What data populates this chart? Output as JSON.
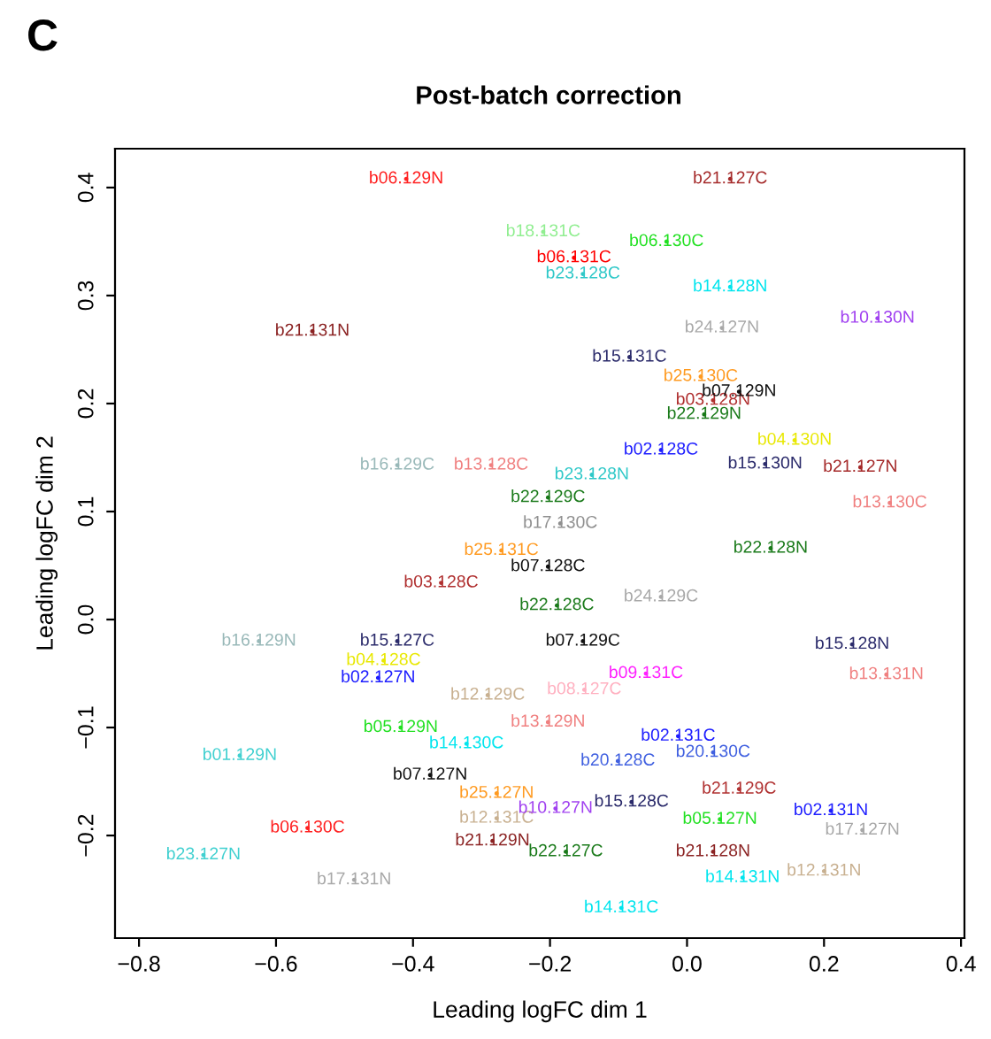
{
  "chart_data": {
    "type": "scatter",
    "title": "Post-batch correction",
    "xlabel": "Leading logFC dim 1",
    "ylabel": "Leading logFC dim 2",
    "annotations": [
      "C"
    ],
    "marker": "circle",
    "grid": false,
    "xlim": [
      -0.835,
      0.405
    ],
    "ylim": [
      -0.295,
      0.436
    ],
    "xticks": [
      {
        "value": -0.8,
        "label": "−0.8"
      },
      {
        "value": -0.6,
        "label": "−0.6"
      },
      {
        "value": -0.4,
        "label": "−0.4"
      },
      {
        "value": -0.2,
        "label": "−0.2"
      },
      {
        "value": 0.0,
        "label": "0.0"
      },
      {
        "value": 0.2,
        "label": "0.2"
      },
      {
        "value": 0.4,
        "label": "0.4"
      }
    ],
    "yticks": [
      {
        "value": -0.2,
        "label": "−0.2"
      },
      {
        "value": -0.1,
        "label": "−0.1"
      },
      {
        "value": 0.0,
        "label": "0.0"
      },
      {
        "value": 0.1,
        "label": "0.1"
      },
      {
        "value": 0.2,
        "label": "0.2"
      },
      {
        "value": 0.3,
        "label": "0.3"
      },
      {
        "value": 0.4,
        "label": "0.4"
      }
    ],
    "x": [
      -0.41,
      0.063,
      -0.21,
      -0.03,
      -0.165,
      -0.152,
      0.063,
      0.278,
      0.051,
      -0.547,
      -0.084,
      0.038,
      0.025,
      0.076,
      0.02,
      -0.038,
      0.157,
      0.114,
      0.253,
      0.296,
      -0.286,
      -0.423,
      -0.203,
      -0.185,
      -0.139,
      0.122,
      -0.203,
      -0.271,
      -0.359,
      -0.19,
      -0.152,
      0.241,
      -0.625,
      -0.423,
      -0.443,
      -0.451,
      -0.291,
      -0.203,
      -0.322,
      -0.418,
      -0.653,
      -0.375,
      -0.278,
      -0.278,
      -0.284,
      -0.554,
      -0.706,
      -0.486,
      -0.192,
      -0.177,
      -0.081,
      0.048,
      0.21,
      0.256,
      0.038,
      0.081,
      0.2,
      -0.096,
      0.076,
      -0.101,
      0.038,
      -0.013,
      -0.06,
      -0.15,
      0.291,
      -0.038
    ],
    "values": [
      0.408,
      0.408,
      0.359,
      0.35,
      0.335,
      0.32,
      0.308,
      0.279,
      0.27,
      0.267,
      0.243,
      0.203,
      0.19,
      0.211,
      0.225,
      0.157,
      0.166,
      0.144,
      0.141,
      0.108,
      0.143,
      0.143,
      0.113,
      0.089,
      0.134,
      0.066,
      0.049,
      0.064,
      0.034,
      0.013,
      -0.02,
      -0.023,
      -0.02,
      -0.02,
      -0.038,
      -0.054,
      -0.07,
      -0.095,
      -0.115,
      -0.1,
      -0.126,
      -0.144,
      -0.161,
      -0.184,
      -0.205,
      -0.193,
      -0.218,
      -0.241,
      -0.175,
      -0.215,
      -0.169,
      -0.185,
      -0.177,
      -0.195,
      -0.215,
      -0.239,
      -0.233,
      -0.267,
      -0.157,
      -0.131,
      -0.123,
      -0.108,
      -0.05,
      -0.065,
      -0.051,
      0.021
    ],
    "value_labels": [
      "b06.129N",
      "b21.127C",
      "b18.131C",
      "b06.130C",
      "b06.131C",
      "b23.128C",
      "b14.128N",
      "b10.130N",
      "b24.127N",
      "b21.131N",
      "b15.131C",
      "b03.128N",
      "b22.129N",
      "b07.129N",
      "b25.130C",
      "b02.128C",
      "b04.130N",
      "b15.130N",
      "b21.127N",
      "b13.130C",
      "b13.128C",
      "b16.129C",
      "b22.129C",
      "b17.130C",
      "b23.128N",
      "b22.128N",
      "b07.128C",
      "b25.131C",
      "b03.128C",
      "b22.128C",
      "b07.129C",
      "b15.128N",
      "b16.129N",
      "b15.127C",
      "b04.128C",
      "b02.127N",
      "b12.129C",
      "b13.129N",
      "b14.130C",
      "b05.129N",
      "b01.129N",
      "b07.127N",
      "b25.127N",
      "b12.131C",
      "b21.129N",
      "b06.130C",
      "b23.127N",
      "b17.131N",
      "b10.127N",
      "b22.127C",
      "b15.128C",
      "b05.127N",
      "b02.131N",
      "b17.127N",
      "b21.128N",
      "b14.131N",
      "b12.131N",
      "b14.131C",
      "b21.129C",
      "b20.128C",
      "b20.130C",
      "b02.131C",
      "b09.131C",
      "b08.127C",
      "b13.131N",
      "b24.129C"
    ],
    "colors": [
      "#ff2020",
      "#a52a2a",
      "#90ee90",
      "#20e020",
      "#ff0000",
      "#2ec8c8",
      "#00e5ee",
      "#a040f0",
      "#a8a8a8",
      "#8b2323",
      "#2b2b6b",
      "#b03030",
      "#1a7a1a",
      "#111111",
      "#ff9a20",
      "#1f1fff",
      "#e8e800",
      "#2b2b6b",
      "#a52a2a",
      "#f08080",
      "#f08080",
      "#98b8b8",
      "#1a7a1a",
      "#909090",
      "#2ec8c8",
      "#1a7a1a",
      "#111111",
      "#ff9a20",
      "#b03030",
      "#1a7a1a",
      "#111111",
      "#2b2b6b",
      "#98b8b8",
      "#2b2b6b",
      "#e8e800",
      "#1f1fff",
      "#c8b090",
      "#f08080",
      "#00e5ee",
      "#20e020",
      "#40d0d0",
      "#111111",
      "#ff9a20",
      "#c8b090",
      "#8b2323",
      "#ff2020",
      "#40d0d0",
      "#a8a8a8",
      "#a040f0",
      "#1a7a1a",
      "#2b2b6b",
      "#20e020",
      "#1f1fff",
      "#a8a8a8",
      "#8b2323",
      "#00e5ee",
      "#c8b090",
      "#00e5ee",
      "#b03030",
      "#4060e0",
      "#4060e0",
      "#1f1fff",
      "#ff20ff",
      "#ffb0c0",
      "#f08080",
      "#a8a8a8"
    ]
  }
}
